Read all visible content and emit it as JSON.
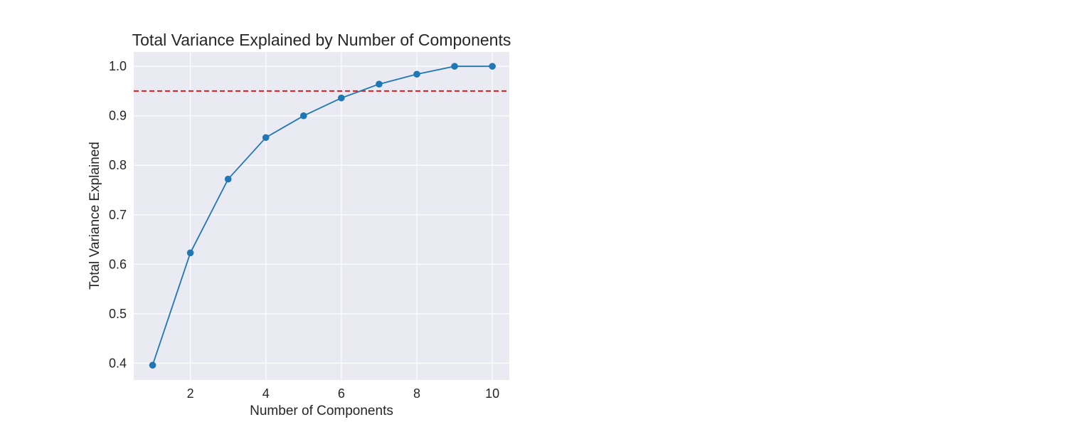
{
  "chart_data": {
    "type": "line",
    "title": "Total Variance Explained by Number of Components",
    "xlabel": "Number of Components",
    "ylabel": "Total Variance Explained",
    "x": [
      1,
      2,
      3,
      4,
      5,
      6,
      7,
      8,
      9,
      10
    ],
    "series": [
      {
        "values": [
          0.396,
          0.623,
          0.772,
          0.856,
          0.9,
          0.936,
          0.964,
          0.984,
          1.0,
          1.0
        ],
        "color": "#1f77b4",
        "marker": "circle"
      }
    ],
    "reference_lines": [
      {
        "orientation": "horizontal",
        "y": 0.95,
        "color": "#e41a1c",
        "style": "dashed"
      }
    ],
    "xlim": [
      0.5,
      10.45
    ],
    "ylim": [
      0.366,
      1.029
    ],
    "xticks": [
      2,
      4,
      6,
      8,
      10
    ],
    "xtick_labels": [
      "2",
      "4",
      "6",
      "8",
      "10"
    ],
    "yticks": [
      0.4,
      0.5,
      0.6,
      0.7,
      0.8,
      0.9,
      1.0
    ],
    "ytick_labels": [
      "0.4",
      "0.5",
      "0.6",
      "0.7",
      "0.8",
      "0.9",
      "1.0"
    ],
    "grid": true,
    "style": {
      "plot_background": "#eaeaf2",
      "grid_color": "#ffffff"
    }
  }
}
